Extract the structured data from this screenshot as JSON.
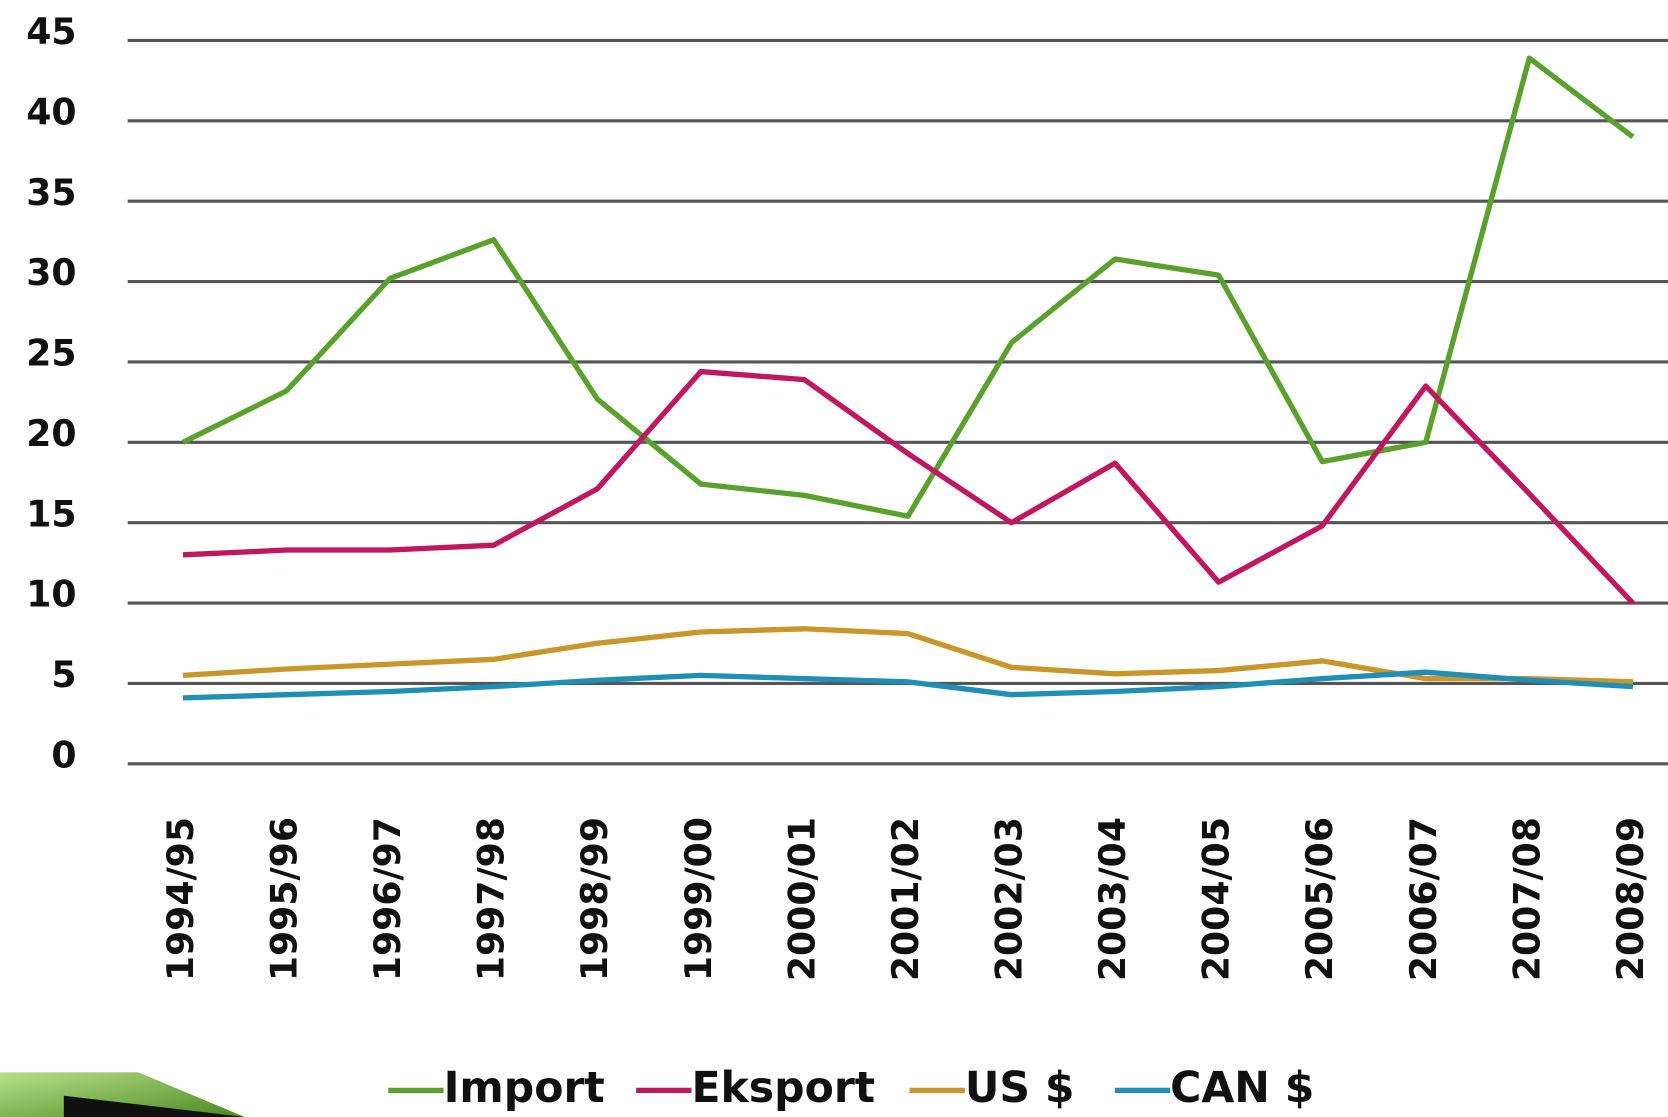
{
  "chart_data": {
    "type": "line",
    "categories": [
      "1994/95",
      "1995/96",
      "1996/97",
      "1997/98",
      "1998/99",
      "1999/00",
      "2000/01",
      "2001/02",
      "2002/03",
      "2003/04",
      "2004/05",
      "2005/06",
      "2006/07",
      "2007/08",
      "2008/09"
    ],
    "series": [
      {
        "name": "Import",
        "color": "#5aa02c",
        "values": [
          20,
          23.2,
          30.2,
          32.6,
          22.7,
          17.4,
          16.7,
          15.4,
          26.2,
          31.4,
          30.4,
          18.8,
          20,
          43.9,
          39
        ]
      },
      {
        "name": "Eksport",
        "color": "#c0175f",
        "values": [
          13,
          13.3,
          13.3,
          13.6,
          17.1,
          24.4,
          23.9,
          19.3,
          15,
          18.7,
          11.3,
          14.8,
          23.5,
          16.8,
          10
        ]
      },
      {
        "name": "US $",
        "color": "#c9962a",
        "values": [
          5.5,
          5.9,
          6.2,
          6.5,
          7.5,
          8.2,
          8.4,
          8.1,
          6,
          5.6,
          5.8,
          6.4,
          5.3,
          5.3,
          5.1
        ]
      },
      {
        "name": "CAN $",
        "color": "#1f8fb5",
        "values": [
          4.1,
          4.3,
          4.5,
          4.8,
          5.2,
          5.5,
          5.3,
          5.1,
          4.3,
          4.5,
          4.8,
          5.3,
          5.7,
          5.2,
          4.8
        ]
      }
    ],
    "ylim": [
      0,
      45
    ],
    "yticks": [
      0,
      5,
      10,
      15,
      20,
      25,
      30,
      35,
      40,
      45
    ],
    "grid": true
  }
}
